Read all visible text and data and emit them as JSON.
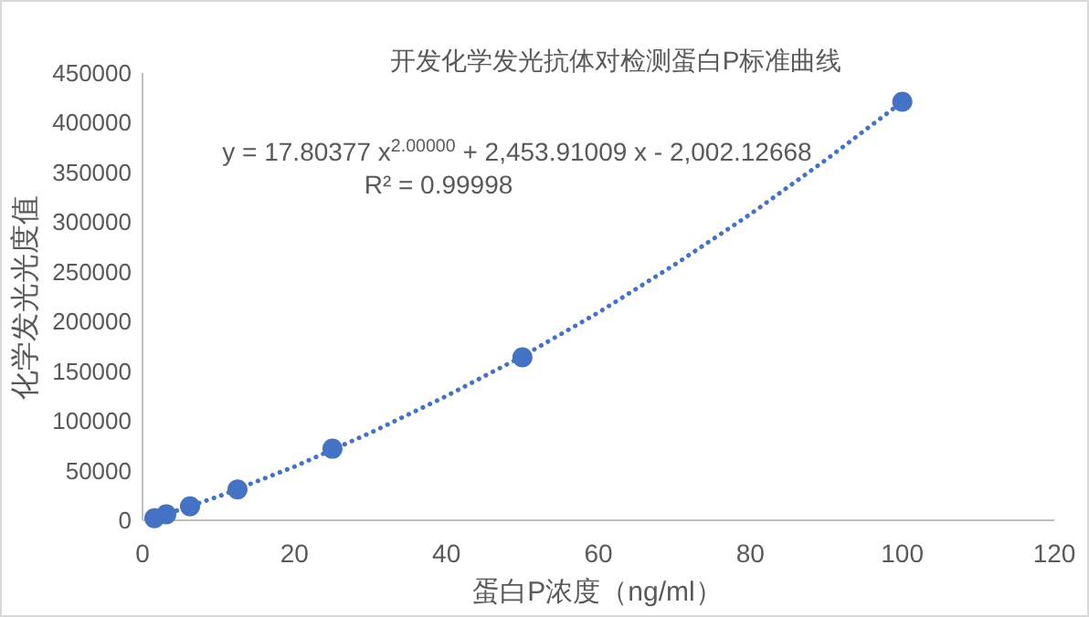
{
  "chart_data": {
    "type": "scatter",
    "title": "开发化学发光抗体对检测蛋白P标准曲线",
    "xlabel": "蛋白P浓度（ng/ml）",
    "ylabel": "化学发光光度值",
    "annotations": [
      "y = 17.80377 x$^{2.00000}$  + 2,453.91009 x - 2,002.12668",
      "R² = 0.99998"
    ],
    "series": [
      {
        "type": "scatter",
        "color": "#4472c4",
        "marker": "circle",
        "x": [
          1.5625,
          3.125,
          6.25,
          12.5,
          25,
          50,
          100
        ],
        "values": [
          2000,
          6000,
          14000,
          31000,
          72000,
          164000,
          421000
        ]
      },
      {
        "type": "line",
        "color": "#4472c4",
        "marker": "none",
        "line_style": "dotted",
        "x": [
          1.5625,
          10,
          20,
          30,
          40,
          50,
          60,
          70,
          80,
          90,
          100
        ],
        "values": [
          2000,
          24000,
          54000,
          88000,
          125000,
          165000,
          209000,
          257000,
          308000,
          363000,
          421000
        ]
      }
    ],
    "xlim": [
      0,
      120
    ],
    "xticks": [
      0,
      20,
      40,
      60,
      80,
      100,
      120
    ],
    "ylim": [
      0,
      450000
    ],
    "yticks": [
      0,
      50000,
      100000,
      150000,
      200000,
      250000,
      300000,
      350000,
      400000,
      450000
    ],
    "grid": false
  }
}
